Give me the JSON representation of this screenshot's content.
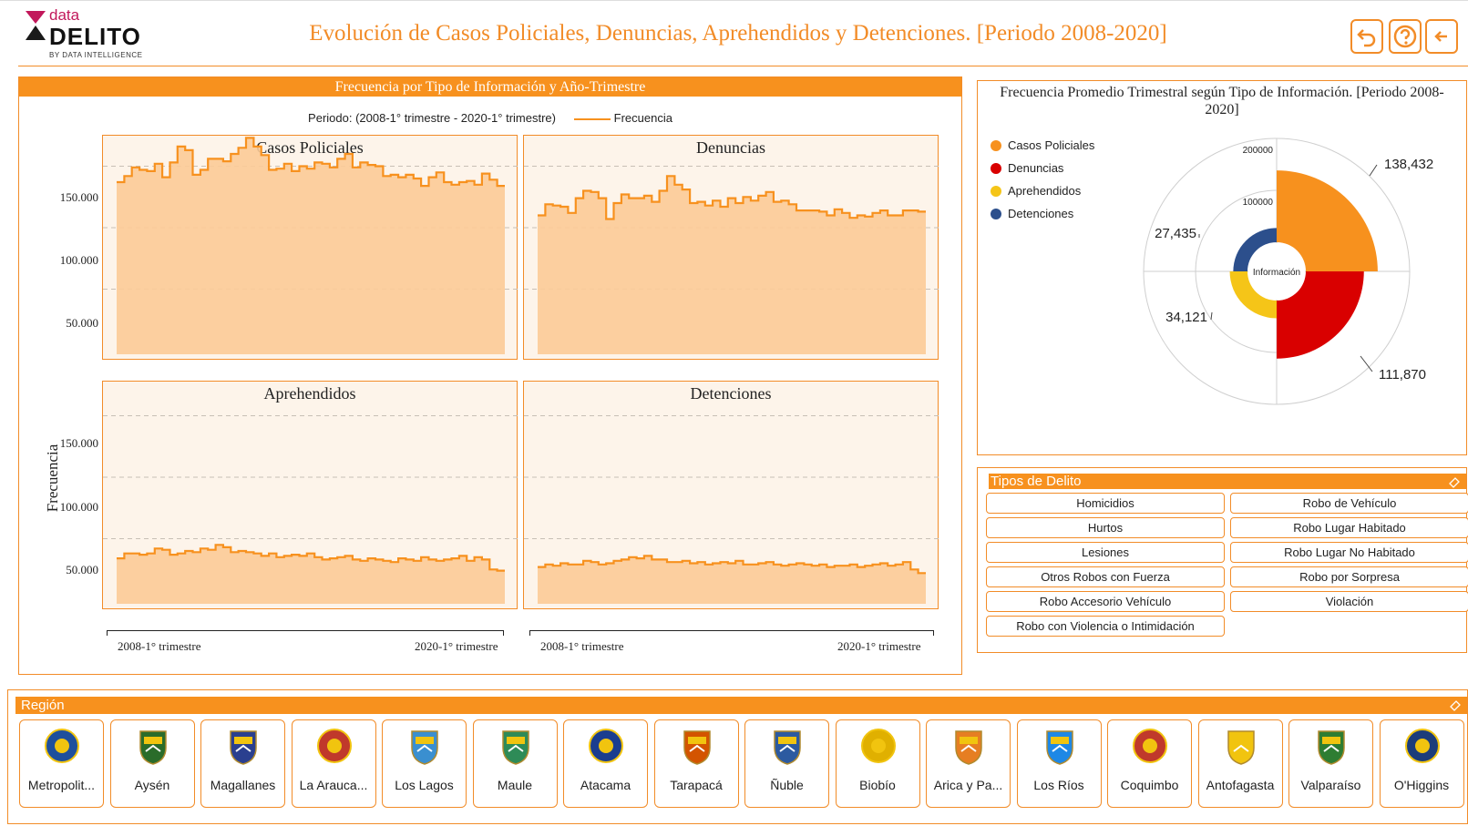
{
  "header": {
    "logo": {
      "data": "data",
      "delito": "DELITO",
      "by": "BY DATA INTELLIGENCE"
    },
    "title": "Evolución de Casos Policiales, Denuncias, Aprehendidos y Detenciones. [Periodo 2008-2020]",
    "buttons": [
      "undo-icon",
      "help-icon",
      "back-arrow-icon"
    ]
  },
  "left_panel": {
    "header": "Frecuencia por Tipo de Información y Año-Trimestre",
    "legend_period": "Periodo: (2008-1° trimestre - 2020-1° trimestre)",
    "legend_series": "Frecuencia",
    "y_title": "Frecuencia",
    "x_start": "2008-1° trimestre",
    "x_end": "2020-1° trimestre"
  },
  "radial_panel": {
    "title": "Frecuencia Promedio Trimestral según Tipo de Información. [Periodo 2008-2020]",
    "center_label": "Información",
    "ring_labels": [
      "200000",
      "100000"
    ],
    "legend": [
      {
        "name": "Casos Policiales",
        "color": "#f7911e"
      },
      {
        "name": "Denuncias",
        "color": "#d90000"
      },
      {
        "name": "Aprehendidos",
        "color": "#f5c518"
      },
      {
        "name": "Detenciones",
        "color": "#2c4f8c"
      }
    ],
    "value_labels": [
      "138,432",
      "111,870",
      "34,121",
      "27,435"
    ]
  },
  "chart_data": [
    {
      "type": "area",
      "title": "Casos Policiales",
      "ylim": [
        0,
        175000
      ],
      "yticks": [
        "150.000",
        "100.000",
        "50.000"
      ],
      "values": [
        137000,
        142000,
        149000,
        147000,
        146000,
        152000,
        141000,
        153000,
        166000,
        163000,
        143000,
        147000,
        156000,
        156000,
        154000,
        160000,
        165000,
        173000,
        166000,
        159000,
        147000,
        148000,
        152000,
        146000,
        150000,
        148000,
        153000,
        152000,
        149000,
        156000,
        160000,
        149000,
        153000,
        151000,
        150000,
        142000,
        143000,
        141000,
        143000,
        140000,
        134000,
        141000,
        145000,
        137000,
        135000,
        137000,
        138000,
        135000,
        144000,
        139000,
        134000
      ]
    },
    {
      "type": "area",
      "title": "Denuncias",
      "ylim": [
        0,
        175000
      ],
      "values": [
        110000,
        119000,
        118000,
        117000,
        112000,
        124000,
        130000,
        129000,
        124000,
        107000,
        120000,
        127000,
        124000,
        124000,
        126000,
        121000,
        130000,
        142000,
        135000,
        131000,
        120000,
        121000,
        118000,
        122000,
        117000,
        124000,
        120000,
        125000,
        122000,
        126000,
        129000,
        121000,
        122000,
        119000,
        114000,
        114000,
        114000,
        113000,
        110000,
        115000,
        112000,
        108000,
        110000,
        109000,
        112000,
        114000,
        110000,
        110000,
        114000,
        114000,
        113000
      ]
    },
    {
      "type": "area",
      "title": "Aprehendidos",
      "ylim": [
        0,
        175000
      ],
      "yticks": [
        "150.000",
        "100.000",
        "50.000"
      ],
      "values": [
        34000,
        38000,
        38000,
        37000,
        38000,
        42000,
        41000,
        37000,
        38000,
        40000,
        39000,
        42000,
        41000,
        45000,
        43000,
        39000,
        40000,
        39000,
        38000,
        36000,
        38000,
        35000,
        36000,
        37000,
        36000,
        38000,
        35000,
        33000,
        34000,
        35000,
        36000,
        33000,
        32000,
        34000,
        33000,
        32000,
        31000,
        34000,
        33000,
        32000,
        35000,
        33000,
        32000,
        33000,
        34000,
        36000,
        32000,
        35000,
        33000,
        25000,
        24000
      ]
    },
    {
      "type": "area",
      "title": "Detenciones",
      "ylim": [
        0,
        175000
      ],
      "values": [
        27000,
        29000,
        28000,
        30000,
        29000,
        29000,
        32000,
        31000,
        29000,
        30000,
        32000,
        33000,
        35000,
        34000,
        36000,
        33000,
        33000,
        31000,
        31000,
        32000,
        30000,
        31000,
        29000,
        30000,
        31000,
        30000,
        32000,
        29000,
        29000,
        30000,
        31000,
        29000,
        28000,
        29000,
        30000,
        29000,
        28000,
        29000,
        27000,
        28000,
        28000,
        29000,
        27000,
        28000,
        29000,
        30000,
        28000,
        29000,
        31000,
        25000,
        22000
      ]
    },
    {
      "type": "radial-bar",
      "title": "Frecuencia Promedio Trimestral según Tipo de Información. [Periodo 2008-2020]",
      "categories": [
        "Casos Policiales",
        "Denuncias",
        "Aprehendidos",
        "Detenciones"
      ],
      "values": [
        138432,
        111870,
        34121,
        27435
      ],
      "rlim": [
        0,
        200000
      ]
    }
  ],
  "tipos_delito": {
    "header": "Tipos de Delito",
    "left": [
      "Homicidios",
      "Hurtos",
      "Lesiones",
      "Otros Robos con Fuerza",
      "Robo Accesorio Vehículo",
      "Robo con Violencia o Intimidación"
    ],
    "right": [
      "Robo de Vehículo",
      "Robo Lugar Habitado",
      "Robo Lugar No Habitado",
      "Robo por Sorpresa",
      "Violación"
    ]
  },
  "region": {
    "header": "Región",
    "items": [
      "Metropolit...",
      "Aysén",
      "Magallanes",
      "La Arauca...",
      "Los Lagos",
      "Maule",
      "Atacama",
      "Tarapacá",
      "Ñuble",
      "Biobío",
      "Arica y Pa...",
      "Los Ríos",
      "Coquimbo",
      "Antofagasta",
      "Valparaíso",
      "O'Higgins"
    ],
    "emblem_colors": [
      "#1e4f9c",
      "#2a6c2a",
      "#2a3f8f",
      "#c0392b",
      "#3a8fd0",
      "#2e8b57",
      "#1a3d8f",
      "#d35400",
      "#2c5aa0",
      "#e0b000",
      "#e67e22",
      "#1e88e5",
      "#c0392b",
      "#f1c40f",
      "#2e7d32",
      "#1c3d7a"
    ]
  }
}
